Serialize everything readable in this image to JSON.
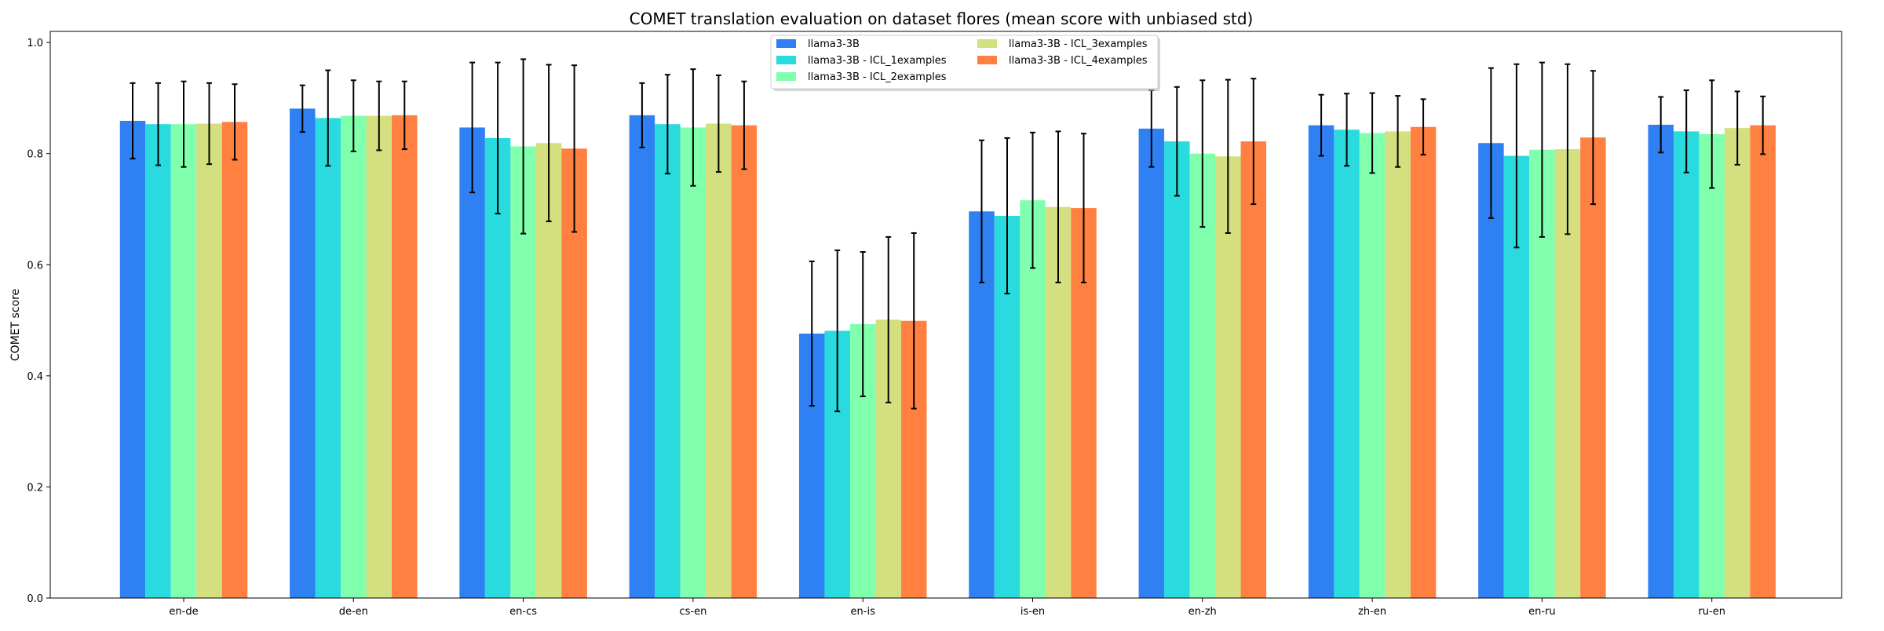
{
  "chart_data": {
    "type": "bar",
    "title": "COMET translation evaluation on dataset flores (mean score with unbiased std)",
    "xlabel": "",
    "ylabel": "COMET score",
    "ylim": [
      0,
      1.02
    ],
    "yticks": [
      "0.0",
      "0.2",
      "0.4",
      "0.6",
      "0.8",
      "1.0"
    ],
    "grid": false,
    "legend_position": "top-center",
    "categories": [
      "en-de",
      "de-en",
      "en-cs",
      "cs-en",
      "en-is",
      "is-en",
      "en-zh",
      "zh-en",
      "en-ru",
      "ru-en"
    ],
    "series": [
      {
        "name": "llama3-3B",
        "color": "#2f80f2",
        "values": [
          0.859,
          0.881,
          0.847,
          0.869,
          0.476,
          0.696,
          0.845,
          0.851,
          0.819,
          0.852
        ],
        "std": [
          0.068,
          0.042,
          0.117,
          0.058,
          0.13,
          0.128,
          0.069,
          0.055,
          0.135,
          0.05
        ]
      },
      {
        "name": "llama3-3B - ICL_1examples",
        "color": "#29dadf",
        "values": [
          0.853,
          0.864,
          0.828,
          0.853,
          0.481,
          0.688,
          0.822,
          0.843,
          0.796,
          0.84
        ],
        "std": [
          0.074,
          0.086,
          0.136,
          0.089,
          0.145,
          0.14,
          0.098,
          0.065,
          0.165,
          0.074
        ]
      },
      {
        "name": "llama3-3B - ICL_2examples",
        "color": "#80ffad",
        "values": [
          0.853,
          0.868,
          0.813,
          0.847,
          0.493,
          0.716,
          0.8,
          0.837,
          0.807,
          0.835
        ],
        "std": [
          0.077,
          0.064,
          0.157,
          0.105,
          0.13,
          0.122,
          0.132,
          0.072,
          0.157,
          0.097
        ]
      },
      {
        "name": "llama3-3B - ICL_3examples",
        "color": "#d4df7f",
        "values": [
          0.854,
          0.868,
          0.819,
          0.854,
          0.501,
          0.704,
          0.795,
          0.84,
          0.808,
          0.846
        ],
        "std": [
          0.073,
          0.062,
          0.141,
          0.087,
          0.149,
          0.136,
          0.138,
          0.064,
          0.153,
          0.066
        ]
      },
      {
        "name": "llama3-3B - ICL_4examples",
        "color": "#ff8040",
        "values": [
          0.857,
          0.869,
          0.809,
          0.851,
          0.499,
          0.702,
          0.822,
          0.848,
          0.829,
          0.851
        ],
        "std": [
          0.068,
          0.061,
          0.15,
          0.079,
          0.158,
          0.134,
          0.113,
          0.05,
          0.12,
          0.052
        ]
      }
    ]
  }
}
